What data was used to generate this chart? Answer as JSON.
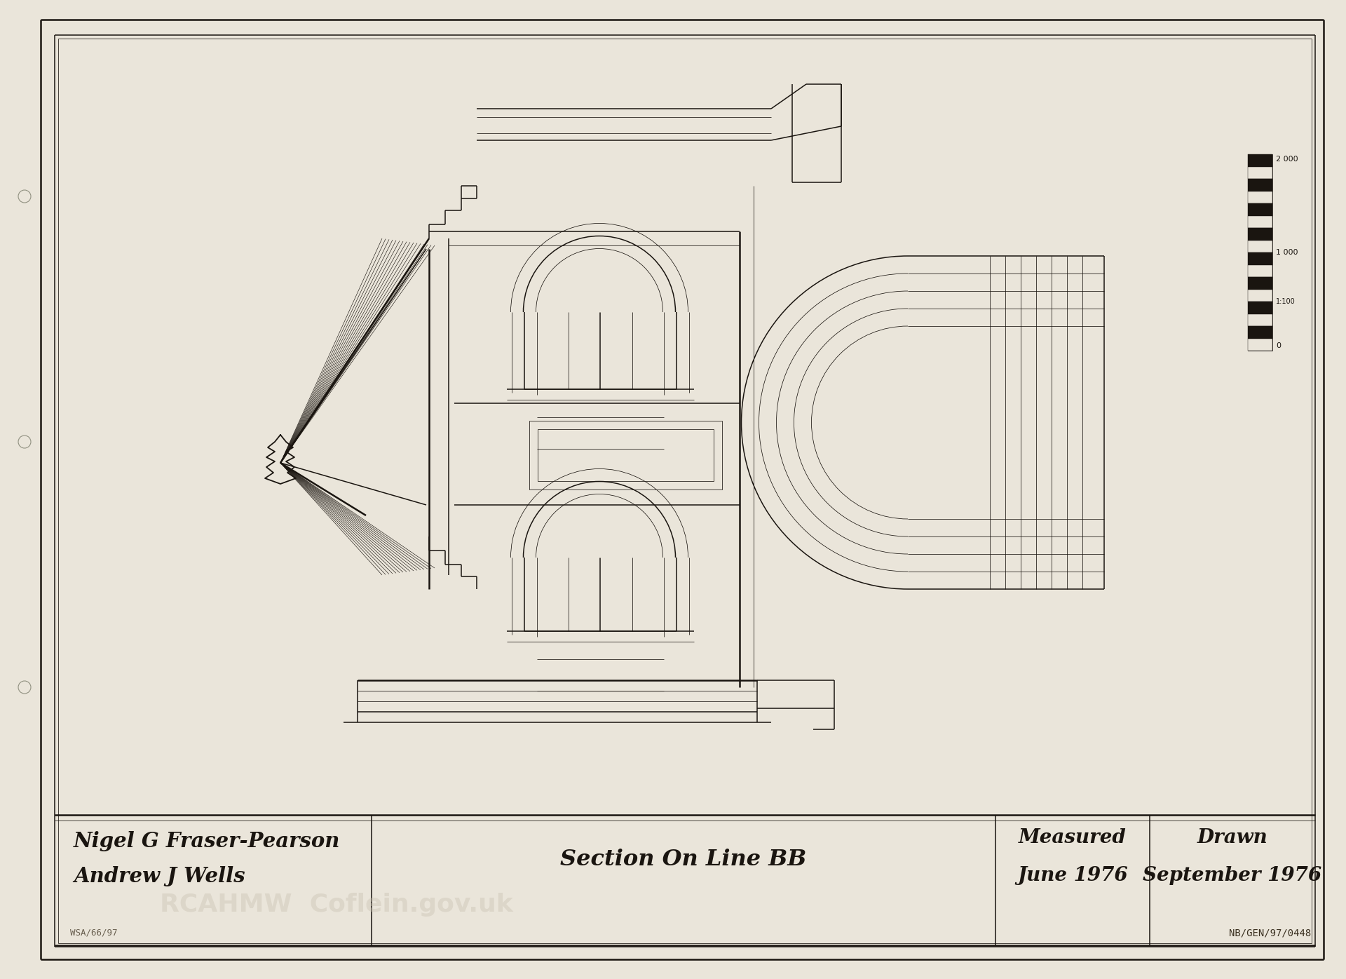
{
  "bg_color": "#EAE5DA",
  "line_color": "#1A1510",
  "border_color": "#1A1510",
  "title_line1": "Nigel G Fraser-Pearson",
  "title_line2": "Andrew J Wells",
  "section_label": "Section On Line BB",
  "measured_label": "Measured",
  "measured_date": "June 1976",
  "drawn_label": "Drawn",
  "drawn_date": "September 1976",
  "ref_code": "NB/GEN/97/0448",
  "wsa_code": "WSA/66/97",
  "watermark1": "RCAHMW  Coflein.gov.uk",
  "lw_thick": 1.8,
  "lw_med": 1.1,
  "lw_thin": 0.55
}
